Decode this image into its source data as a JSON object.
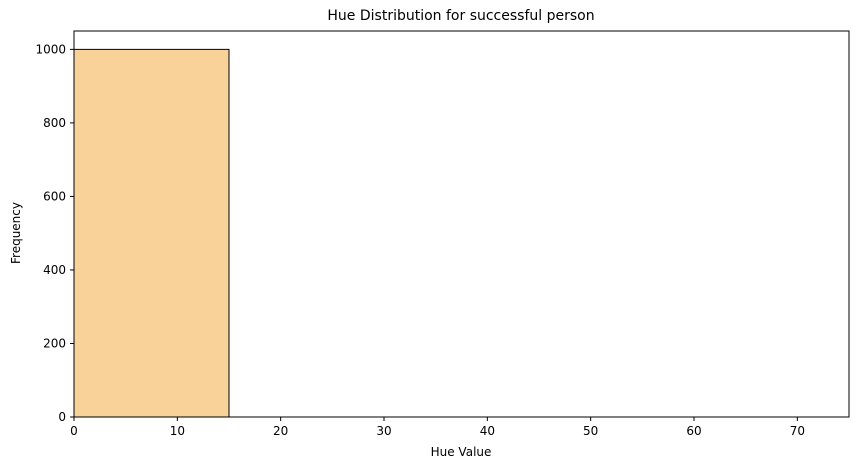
{
  "chart_data": {
    "type": "bar",
    "title": "Hue Distribution for successful person",
    "xlabel": "Hue Value",
    "ylabel": "Frequency",
    "xlim": [
      0,
      75
    ],
    "ylim": [
      0,
      1050
    ],
    "xticks": [
      0,
      10,
      20,
      30,
      40,
      50,
      60,
      70
    ],
    "yticks": [
      0,
      200,
      400,
      600,
      800,
      1000
    ],
    "bins": [
      {
        "x0": 0,
        "x1": 15,
        "count": 1000
      }
    ],
    "bar_color": "#f9d29a",
    "edge_color": "#000000",
    "grid": false
  }
}
